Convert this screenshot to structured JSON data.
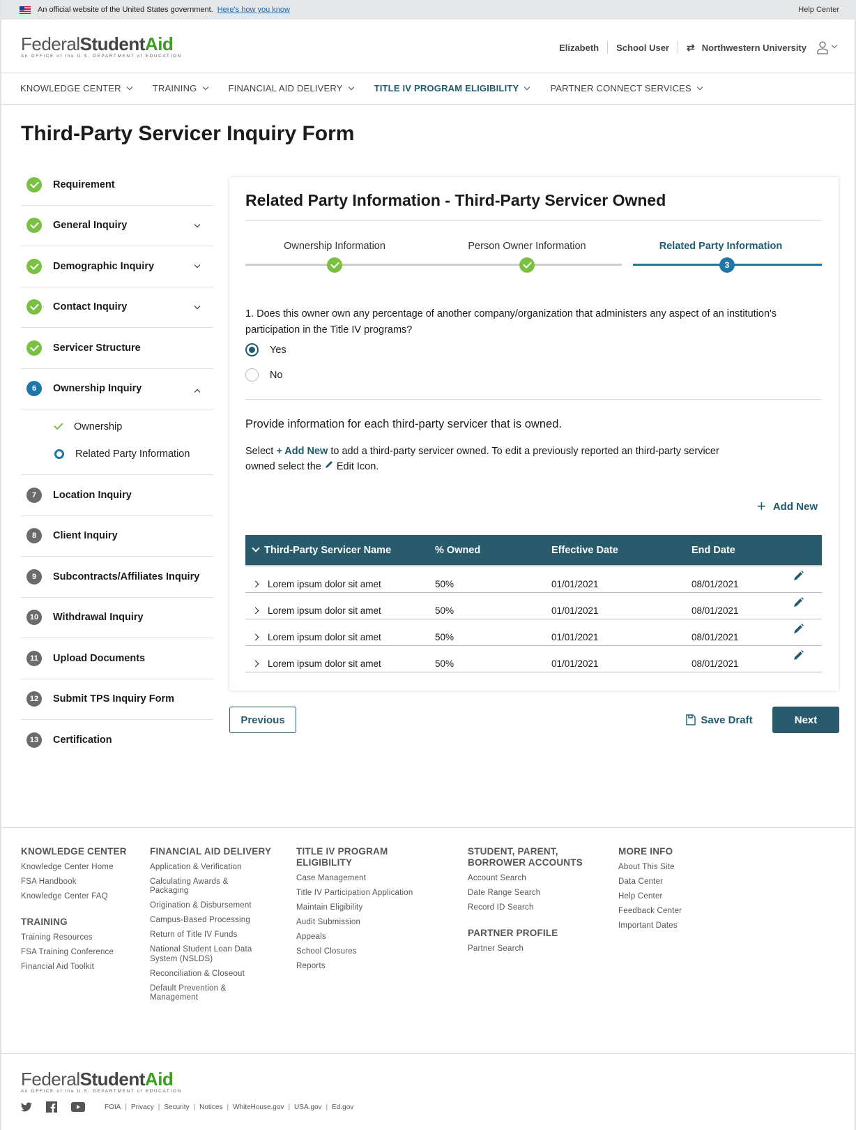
{
  "banner": {
    "text": "An official website of the United States government.",
    "link": "Here's how you know",
    "help": "Help Center"
  },
  "logo": {
    "part1": "Federal",
    "part2": "Student",
    "part3": "Aid",
    "tagline": "An OFFICE of the U.S. DEPARTMENT of EDUCATION"
  },
  "header": {
    "user": "Elizabeth",
    "role": "School User",
    "org": "Northwestern University",
    "icons": [
      "swap-icon",
      "user-icon"
    ]
  },
  "nav": [
    {
      "label": "KNOWLEDGE CENTER"
    },
    {
      "label": "TRAINING"
    },
    {
      "label": "FINANCIAL AID DELIVERY"
    },
    {
      "label": "TITLE IV PROGRAM ELIGIBILITY",
      "active": true
    },
    {
      "label": "PARTNER CONNECT SERVICES"
    }
  ],
  "page_title": "Third-Party Servicer Inquiry Form",
  "sidebar": {
    "items": [
      {
        "label": "Requirement",
        "status": "done"
      },
      {
        "label": "General Inquiry",
        "status": "done",
        "expand": "down"
      },
      {
        "label": "Demographic Inquiry",
        "status": "done",
        "expand": "down"
      },
      {
        "label": "Contact Inquiry",
        "status": "done",
        "expand": "down"
      },
      {
        "label": "Servicer Structure",
        "status": "done"
      },
      {
        "label": "Ownership Inquiry",
        "status": "current",
        "num": "6",
        "expand": "up",
        "sub": [
          {
            "label": "Ownership",
            "status": "done"
          },
          {
            "label": "Related Party Information",
            "status": "current"
          }
        ]
      },
      {
        "label": "Location Inquiry",
        "status": "todo",
        "num": "7"
      },
      {
        "label": "Client Inquiry",
        "status": "todo",
        "num": "8"
      },
      {
        "label": "Subcontracts/Affiliates Inquiry",
        "status": "todo",
        "num": "9"
      },
      {
        "label": "Withdrawal Inquiry",
        "status": "todo",
        "num": "10"
      },
      {
        "label": "Upload Documents",
        "status": "todo",
        "num": "11"
      },
      {
        "label": "Submit TPS Inquiry Form",
        "status": "todo",
        "num": "12"
      },
      {
        "label": "Certification",
        "status": "todo",
        "num": "13"
      }
    ]
  },
  "card": {
    "title": "Related Party Information - Third-Party Servicer Owned",
    "steps": [
      {
        "label": "Ownership Information",
        "status": "done"
      },
      {
        "label": "Person Owner Information",
        "status": "done"
      },
      {
        "label": "Related Party Information",
        "status": "current",
        "num": "3"
      }
    ],
    "question": "1. Does this owner own any percentage of another company/organization that administers any aspect of an institution's participation in the Title IV programs?",
    "options": [
      {
        "label": "Yes",
        "selected": true
      },
      {
        "label": "No",
        "selected": false
      }
    ],
    "provide": "Provide information for each third-party servicer that is owned.",
    "instr": {
      "pre": "Select ",
      "link": "+ Add New",
      "mid": " to add a third-party servicer owned. To edit a previously reported an third-party servicer owned select the ",
      "post": " Edit Icon."
    },
    "add_new": "Add New",
    "table": {
      "headers": [
        "Third-Party Servicer Name",
        "% Owned",
        "Effective  Date",
        "End Date"
      ],
      "rows": [
        [
          "Lorem ipsum dolor sit amet",
          "50%",
          "01/01/2021",
          "08/01/2021"
        ],
        [
          "Lorem ipsum dolor sit amet",
          "50%",
          "01/01/2021",
          "08/01/2021"
        ],
        [
          "Lorem ipsum dolor sit amet",
          "50%",
          "01/01/2021",
          "08/01/2021"
        ],
        [
          "Lorem ipsum dolor sit amet",
          "50%",
          "01/01/2021",
          "08/01/2021"
        ]
      ]
    }
  },
  "actions": {
    "previous": "Previous",
    "save_draft": "Save Draft",
    "next": "Next"
  },
  "colors": {
    "primary": "#295b6c",
    "step_blue": "#1f77a8",
    "success": "#7ac143",
    "logo_green": "#3c9d23"
  },
  "footer": {
    "columns": [
      {
        "groups": [
          {
            "heading": "KNOWLEDGE CENTER",
            "links": [
              "Knowledge Center Home",
              "FSA Handbook",
              "Knowledge Center FAQ"
            ]
          },
          {
            "heading": "TRAINING",
            "links": [
              "Training Resources",
              "FSA Training Conference",
              "Financial Aid Toolkit"
            ]
          }
        ]
      },
      {
        "groups": [
          {
            "heading": "FINANCIAL AID DELIVERY",
            "links": [
              "Application & Verification",
              "Calculating Awards & Packaging",
              "Origination & Disbursement",
              "Campus-Based Processing",
              "Return of Title IV Funds",
              "National Student Loan Data System (NSLDS)",
              "Reconciliation & Closeout",
              "Default Prevention & Management"
            ]
          }
        ]
      },
      {
        "groups": [
          {
            "heading": "TITLE IV PROGRAM ELIGIBILITY",
            "links": [
              "Case Management",
              "Title IV Participation Application",
              "Maintain Eligibility",
              "Audit Submission",
              "Appeals",
              "School Closures",
              "Reports"
            ]
          }
        ]
      },
      {
        "groups": [
          {
            "heading": "STUDENT, PARENT, BORROWER ACCOUNTS",
            "links": [
              "Account Search",
              "Date Range Search",
              "Record ID Search"
            ]
          },
          {
            "heading": "PARTNER PROFILE",
            "links": [
              "Partner Search"
            ]
          }
        ]
      },
      {
        "groups": [
          {
            "heading": "MORE INFO",
            "links": [
              "About This Site",
              "Data Center",
              "Help Center",
              "Feedback Center",
              "Important Dates"
            ]
          }
        ]
      }
    ],
    "social": [
      "twitter-icon",
      "facebook-icon",
      "youtube-icon"
    ],
    "legal": [
      "FOIA",
      "Privacy",
      "Security",
      "Notices",
      "WhiteHouse.gov",
      "USA.gov",
      "Ed.gov"
    ]
  }
}
